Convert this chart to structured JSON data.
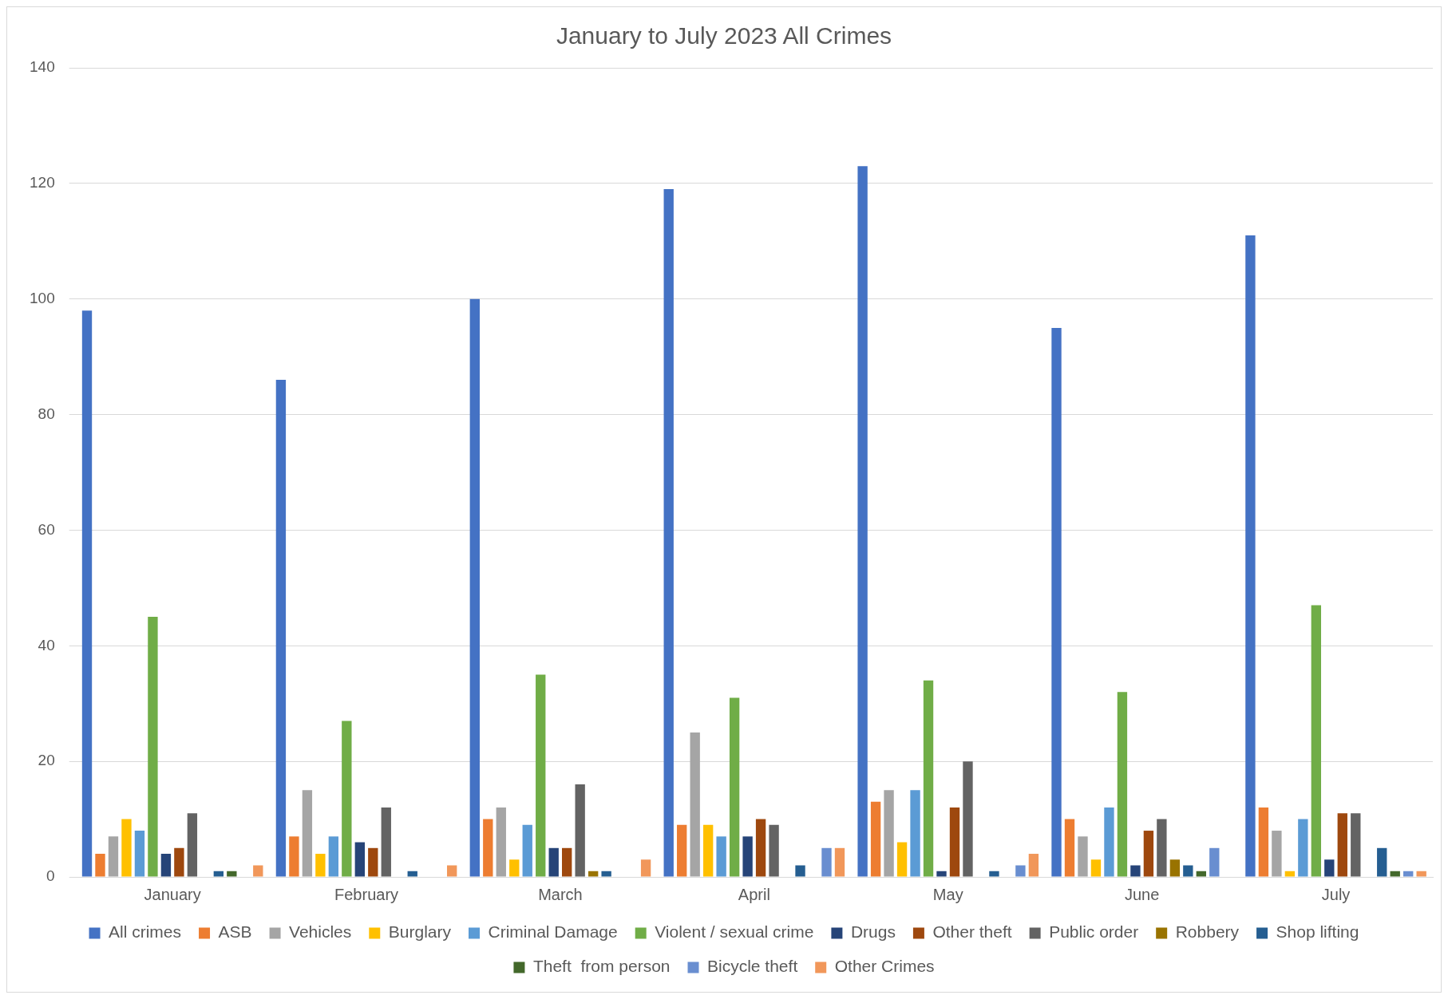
{
  "chart_data": {
    "type": "bar",
    "title": "January to July 2023 All Crimes",
    "categories": [
      "January",
      "February",
      "March",
      "April",
      "May",
      "June",
      "July"
    ],
    "series": [
      {
        "name": "All crimes",
        "color": "#4472c4",
        "values": [
          98,
          86,
          100,
          119,
          123,
          95,
          111
        ]
      },
      {
        "name": "ASB",
        "color": "#ed7d31",
        "values": [
          4,
          7,
          10,
          9,
          13,
          10,
          12
        ]
      },
      {
        "name": "Vehicles",
        "color": "#a5a5a5",
        "values": [
          7,
          15,
          12,
          25,
          15,
          7,
          8
        ]
      },
      {
        "name": "Burglary",
        "color": "#ffc000",
        "values": [
          10,
          4,
          3,
          9,
          6,
          3,
          1
        ]
      },
      {
        "name": "Criminal Damage",
        "color": "#5b9bd5",
        "values": [
          8,
          7,
          9,
          7,
          15,
          12,
          10
        ]
      },
      {
        "name": "Violent / sexual crime",
        "color": "#70ad47",
        "values": [
          45,
          27,
          35,
          31,
          34,
          32,
          47
        ]
      },
      {
        "name": "Drugs",
        "color": "#264478",
        "values": [
          4,
          6,
          5,
          7,
          1,
          2,
          3
        ]
      },
      {
        "name": "Other theft",
        "color": "#9e480e",
        "values": [
          5,
          5,
          5,
          10,
          12,
          8,
          11
        ]
      },
      {
        "name": "Public order",
        "color": "#636363",
        "values": [
          11,
          12,
          16,
          9,
          20,
          10,
          11
        ]
      },
      {
        "name": "Robbery",
        "color": "#997300",
        "values": [
          0,
          0,
          1,
          0,
          0,
          3,
          0
        ]
      },
      {
        "name": "Shop lifting",
        "color": "#255e91",
        "values": [
          1,
          1,
          1,
          2,
          1,
          2,
          5
        ]
      },
      {
        "name": "Theft  from person",
        "color": "#43682b",
        "values": [
          1,
          0,
          0,
          0,
          0,
          1,
          1
        ]
      },
      {
        "name": "Bicycle theft",
        "color": "#698ed0",
        "values": [
          0,
          0,
          0,
          5,
          2,
          5,
          1
        ]
      },
      {
        "name": "Other Crimes",
        "color": "#f1975a",
        "values": [
          2,
          2,
          3,
          5,
          4,
          0,
          1
        ]
      }
    ],
    "ylim": [
      0,
      140
    ],
    "yticks": [
      0,
      20,
      40,
      60,
      80,
      100,
      120,
      140
    ],
    "grid": "y",
    "legend": "bottom"
  }
}
